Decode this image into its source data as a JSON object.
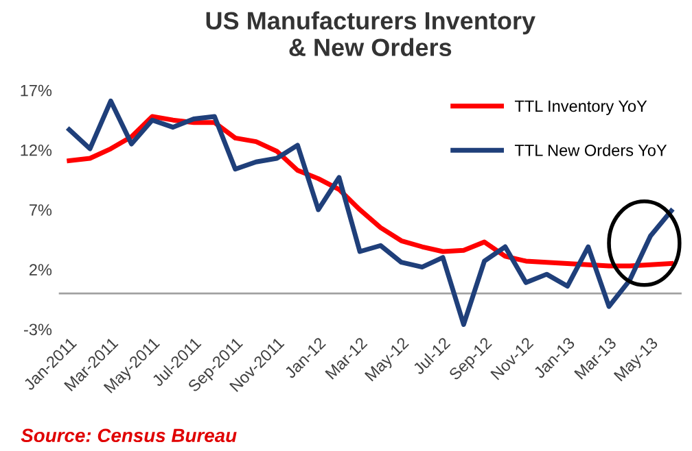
{
  "chart_data": {
    "type": "line",
    "title": "US Manufacturers Inventory\n& New Orders",
    "categories": [
      "Jan-2011",
      null,
      "Mar-2011",
      null,
      "May-2011",
      null,
      "Jul-2011",
      null,
      "Sep-2011",
      null,
      "Nov-2011",
      null,
      "Jan-12",
      null,
      "Mar-12",
      null,
      "May-12",
      null,
      "Jul-12",
      null,
      "Sep-12",
      null,
      "Nov-12",
      null,
      "Jan-13",
      null,
      "Mar-13",
      null,
      "May-13",
      null
    ],
    "series": [
      {
        "name": "TTL Inventory YoY",
        "color": "#ff0000",
        "values": [
          11.1,
          11.3,
          12.1,
          13.1,
          14.8,
          14.5,
          14.3,
          14.3,
          13.0,
          12.7,
          11.9,
          10.3,
          9.6,
          8.7,
          7.0,
          5.5,
          4.4,
          3.9,
          3.5,
          3.6,
          4.3,
          3.1,
          2.7,
          2.6,
          2.5,
          2.4,
          2.3,
          2.3,
          2.4,
          2.5
        ]
      },
      {
        "name": "TTL New Orders YoY",
        "color": "#1f3f7a",
        "values": [
          13.7,
          12.1,
          16.1,
          12.5,
          14.5,
          13.9,
          14.6,
          14.8,
          10.4,
          11.0,
          11.3,
          12.4,
          7.0,
          9.7,
          3.5,
          4.0,
          2.6,
          2.2,
          3.0,
          -2.6,
          2.7,
          3.9,
          0.9,
          1.6,
          0.6,
          3.9,
          -1.1,
          1.1,
          4.8,
          6.9
        ]
      }
    ],
    "ylim": [
      -3,
      17
    ],
    "yticks": [
      {
        "value": 17,
        "label": "17%"
      },
      {
        "value": 12,
        "label": "12%"
      },
      {
        "value": 7,
        "label": "7%"
      },
      {
        "value": 2,
        "label": "2%"
      },
      {
        "value": -3,
        "label": "-3%"
      }
    ],
    "ref_lines": [
      {
        "axis": "y",
        "value": 0,
        "label": null,
        "color": "#a0a0a0"
      }
    ],
    "grid": false,
    "legend": "top right",
    "marker": "none",
    "line_style": "solid",
    "annotations": [
      "Source: Census Bureau"
    ]
  }
}
